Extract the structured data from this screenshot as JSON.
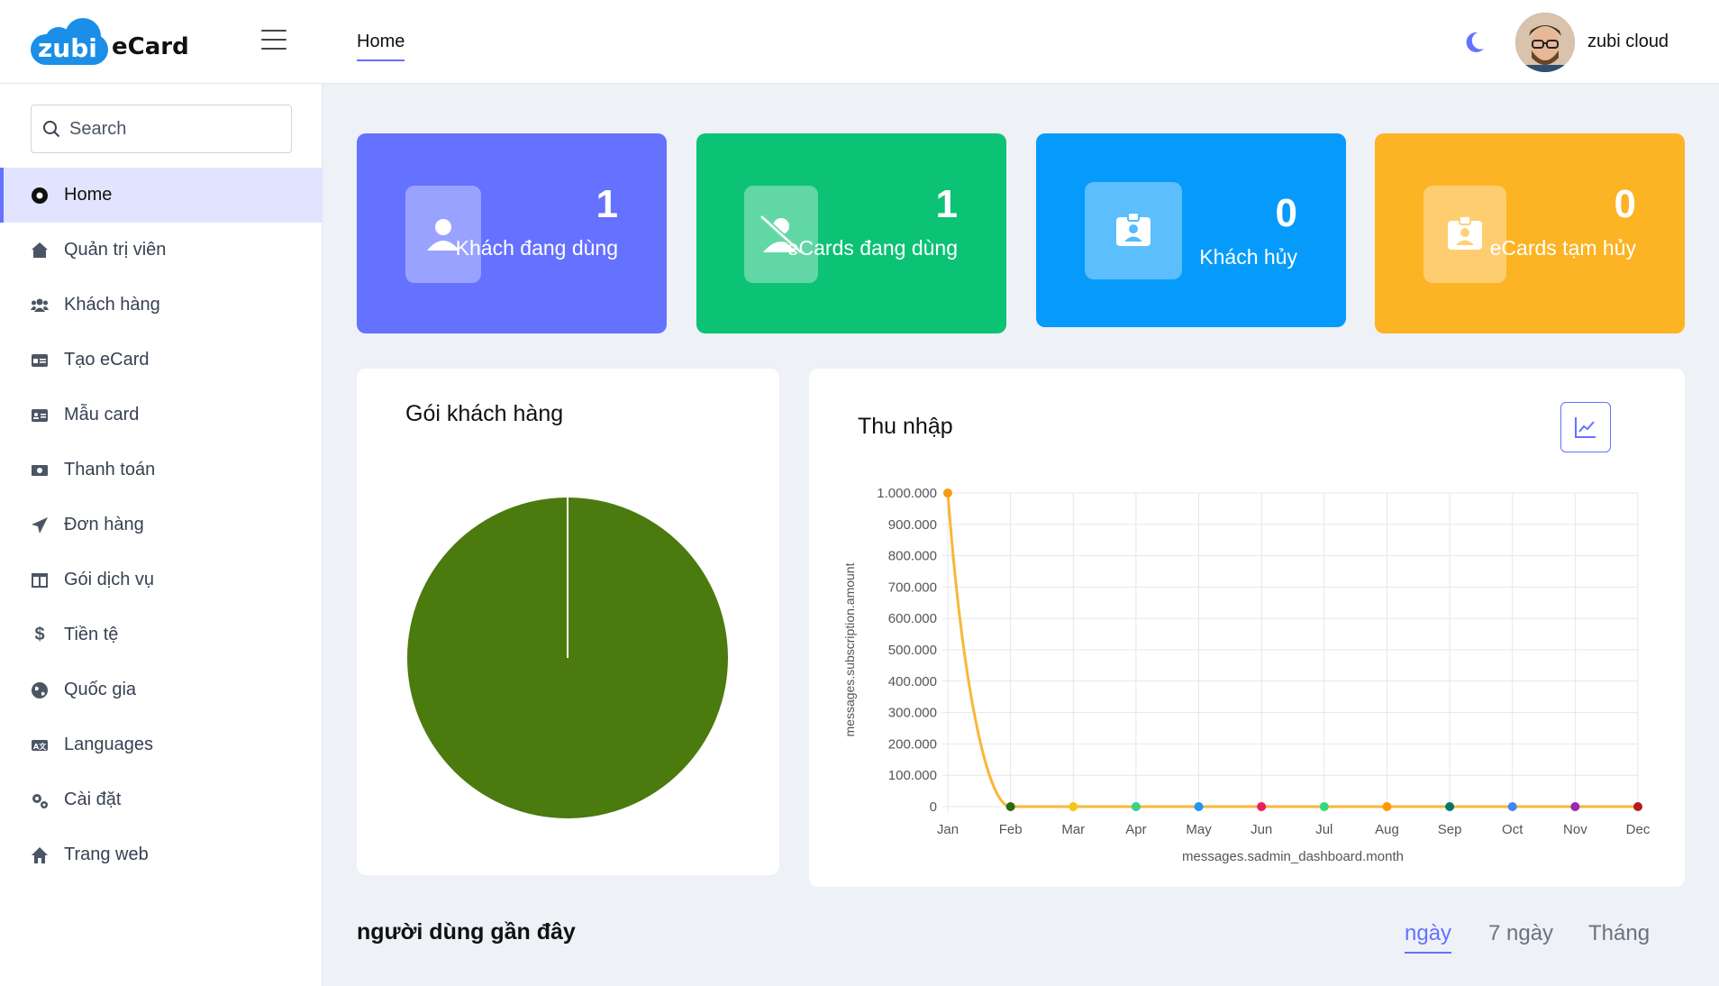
{
  "brand": {
    "logo_text": "zubi",
    "name": "eCard"
  },
  "header": {
    "tab_label": "Home",
    "user_name": "zubi cloud"
  },
  "search": {
    "placeholder": "Search"
  },
  "sidebar": {
    "items": [
      {
        "label": "Home",
        "icon": "circle-dot-icon"
      },
      {
        "label": "Quản trị viên",
        "icon": "user-shield-icon"
      },
      {
        "label": "Khách hàng",
        "icon": "users-icon"
      },
      {
        "label": "Tạo eCard",
        "icon": "id-card-icon"
      },
      {
        "label": "Mẫu card",
        "icon": "card-template-icon"
      },
      {
        "label": "Thanh toán",
        "icon": "money-icon"
      },
      {
        "label": "Đơn hàng",
        "icon": "paper-plane-icon"
      },
      {
        "label": "Gói dịch vụ",
        "icon": "table-columns-icon"
      },
      {
        "label": "Tiền tệ",
        "icon": "dollar-icon"
      },
      {
        "label": "Quốc gia",
        "icon": "globe-icon"
      },
      {
        "label": "Languages",
        "icon": "language-icon"
      },
      {
        "label": "Cài đặt",
        "icon": "gears-icon"
      },
      {
        "label": "Trang web",
        "icon": "home-icon"
      }
    ]
  },
  "stats": [
    {
      "value": "1",
      "label": "Khách đang dùng",
      "color": "#6571ff",
      "icon": "user-icon"
    },
    {
      "value": "1",
      "label": "eCards đang dùng",
      "color": "#0cc275",
      "icon": "user-slash-icon"
    },
    {
      "value": "0",
      "label": "Khách hủy",
      "color": "#069bfb",
      "icon": "id-badge-icon"
    },
    {
      "value": "0",
      "label": "eCards tạm hủy",
      "color": "#fcb324",
      "icon": "id-badge-icon"
    }
  ],
  "plans_panel": {
    "title": "Gói khách hàng"
  },
  "income_panel": {
    "title": "Thu nhập"
  },
  "chart_data": [
    {
      "type": "pie",
      "title": "Gói khách hàng",
      "slices": [
        {
          "value": 1,
          "color": "#4b7a0e"
        }
      ]
    },
    {
      "type": "line",
      "title": "Thu nhập",
      "xlabel": "messages.sadmin_dashboard.month",
      "ylabel": "messages.subscription.amount",
      "ylim": [
        0,
        1000000
      ],
      "yticks": [
        "0",
        "100.000",
        "200.000",
        "300.000",
        "400.000",
        "500.000",
        "600.000",
        "700.000",
        "800.000",
        "900.000",
        "1.000.000"
      ],
      "categories": [
        "Jan",
        "Feb",
        "Mar",
        "Apr",
        "May",
        "Jun",
        "Jul",
        "Aug",
        "Sep",
        "Oct",
        "Nov",
        "Dec"
      ],
      "values": [
        1000000,
        0,
        0,
        0,
        0,
        0,
        0,
        0,
        0,
        0,
        0,
        0
      ],
      "line_color": "#f8b739",
      "point_colors": [
        "#f39c12",
        "#2e6b10",
        "#f5c518",
        "#3ccf8e",
        "#2196f3",
        "#e91e63",
        "#37d67a",
        "#ff9800",
        "#00796b",
        "#4285f4",
        "#9c27b0",
        "#b71c1c"
      ],
      "grid": true
    }
  ],
  "recent": {
    "title": "người dùng gần đây",
    "tabs": [
      "ngày",
      "7 ngày",
      "Tháng"
    ]
  }
}
